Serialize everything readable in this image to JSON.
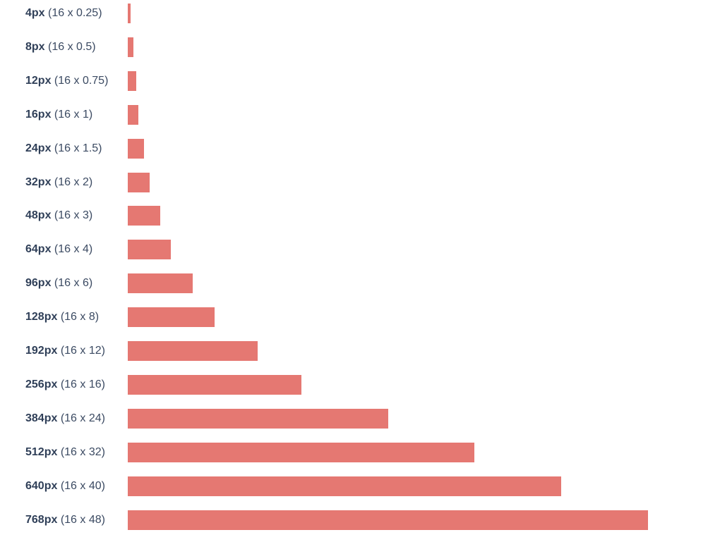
{
  "colors": {
    "bar": "#e57872",
    "label": "#2f3f58"
  },
  "chart_data": {
    "type": "bar",
    "orientation": "horizontal",
    "grid": false,
    "legend": "none",
    "xlim": [
      0,
      768
    ],
    "categories": [
      "4px (16 x 0.25)",
      "8px (16 x 0.5)",
      "12px (16 x 0.75)",
      "16px (16 x 1)",
      "24px (16 x 1.5)",
      "32px (16 x 2)",
      "48px (16 x 3)",
      "64px (16 x 4)",
      "96px (16 x 6)",
      "128px (16 x 8)",
      "192px (16 x 12)",
      "256px (16 x 16)",
      "384px (16 x 24)",
      "512px (16 x 32)",
      "640px (16 x 40)",
      "768px (16 x 48)"
    ],
    "rows": [
      {
        "px": "4px",
        "mult": "(16 x 0.25)",
        "value": 4
      },
      {
        "px": "8px",
        "mult": "(16 x 0.5)",
        "value": 8
      },
      {
        "px": "12px",
        "mult": "(16 x 0.75)",
        "value": 12
      },
      {
        "px": "16px",
        "mult": "(16 x 1)",
        "value": 16
      },
      {
        "px": "24px",
        "mult": "(16 x 1.5)",
        "value": 24
      },
      {
        "px": "32px",
        "mult": "(16 x 2)",
        "value": 32
      },
      {
        "px": "48px",
        "mult": "(16 x 3)",
        "value": 48
      },
      {
        "px": "64px",
        "mult": "(16 x 4)",
        "value": 64
      },
      {
        "px": "96px",
        "mult": "(16 x 6)",
        "value": 96
      },
      {
        "px": "128px",
        "mult": "(16 x 8)",
        "value": 128
      },
      {
        "px": "192px",
        "mult": "(16 x 12)",
        "value": 192
      },
      {
        "px": "256px",
        "mult": "(16 x 16)",
        "value": 256
      },
      {
        "px": "384px",
        "mult": "(16 x 24)",
        "value": 384
      },
      {
        "px": "512px",
        "mult": "(16 x 32)",
        "value": 512
      },
      {
        "px": "640px",
        "mult": "(16 x 40)",
        "value": 640
      },
      {
        "px": "768px",
        "mult": "(16 x 48)",
        "value": 768
      }
    ],
    "values": [
      4,
      8,
      12,
      16,
      24,
      32,
      48,
      64,
      96,
      128,
      192,
      256,
      384,
      512,
      640,
      768
    ]
  }
}
